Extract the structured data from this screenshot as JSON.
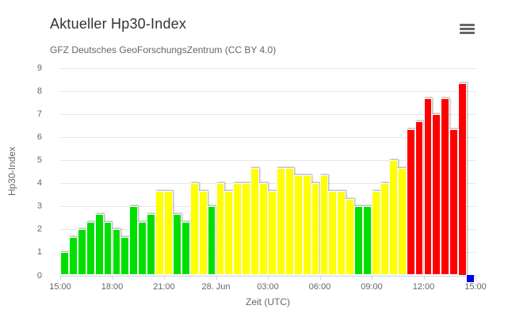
{
  "chart": {
    "title": "Aktueller Hp30-Index",
    "subtitle": "GFZ Deutsches GeoForschungsZentrum (CC BY 4.0)",
    "menu_icon": "hamburger-menu-icon"
  },
  "colors": {
    "axis_line": "#ccd6eb",
    "gridline": "#e6e6e6",
    "title_text": "#333333",
    "muted_text": "#666666",
    "background": "#ffffff"
  },
  "chart_data": {
    "type": "bar",
    "title": "Aktueller Hp30-Index",
    "subtitle": "GFZ Deutsches GeoForschungsZentrum (CC BY 4.0)",
    "xlabel": "Zeit (UTC)",
    "ylabel": "Hp30-Index",
    "ylim": [
      0,
      9
    ],
    "yticks": [
      0,
      1,
      2,
      3,
      4,
      5,
      6,
      7,
      8,
      9
    ],
    "grid": true,
    "legend": false,
    "x_major_tick_labels": [
      "15:00",
      "18:00",
      "21:00",
      "28. Jun",
      "03:00",
      "06:00",
      "09:00",
      "12:00",
      "15:00"
    ],
    "bars_per_major_tick": 6,
    "categories": [
      "15:00",
      "15:30",
      "16:00",
      "16:30",
      "17:00",
      "17:30",
      "18:00",
      "18:30",
      "19:00",
      "19:30",
      "20:00",
      "20:30",
      "21:00",
      "21:30",
      "22:00",
      "22:30",
      "23:00",
      "23:30",
      "00:00",
      "00:30",
      "01:00",
      "01:30",
      "02:00",
      "02:30",
      "03:00",
      "03:30",
      "04:00",
      "04:30",
      "05:00",
      "05:30",
      "06:00",
      "06:30",
      "07:00",
      "07:30",
      "08:00",
      "08:30",
      "09:00",
      "09:30",
      "10:00",
      "10:30",
      "11:00",
      "11:30",
      "12:00",
      "12:30",
      "13:00",
      "13:30",
      "14:00"
    ],
    "values": [
      1.0,
      1.67,
      2.0,
      2.33,
      2.67,
      2.33,
      2.0,
      1.67,
      3.0,
      2.33,
      2.67,
      3.67,
      3.67,
      2.67,
      2.33,
      4.0,
      3.67,
      3.0,
      4.0,
      3.67,
      4.0,
      4.0,
      4.67,
      4.0,
      3.67,
      4.67,
      4.67,
      4.33,
      4.33,
      4.0,
      4.33,
      3.67,
      3.67,
      3.33,
      3.0,
      3.0,
      3.67,
      4.0,
      5.0,
      4.67,
      6.33,
      6.67,
      7.67,
      7.0,
      7.67,
      6.33,
      8.33
    ],
    "bar_colors": [
      "green",
      "green",
      "green",
      "green",
      "green",
      "green",
      "green",
      "green",
      "green",
      "green",
      "green",
      "yellow",
      "yellow",
      "green",
      "green",
      "yellow",
      "yellow",
      "green",
      "yellow",
      "yellow",
      "yellow",
      "yellow",
      "yellow",
      "yellow",
      "yellow",
      "yellow",
      "yellow",
      "yellow",
      "yellow",
      "yellow",
      "yellow",
      "yellow",
      "yellow",
      "yellow",
      "green",
      "green",
      "yellow",
      "yellow",
      "yellow",
      "yellow",
      "red",
      "red",
      "red",
      "red",
      "red",
      "red",
      "red"
    ],
    "palette": {
      "green": "#00e000",
      "yellow": "#ffff00",
      "red": "#ff0000",
      "blue": "#0000ee"
    },
    "current_marker": {
      "label": "14:30",
      "value": 0,
      "color_key": "blue"
    }
  }
}
